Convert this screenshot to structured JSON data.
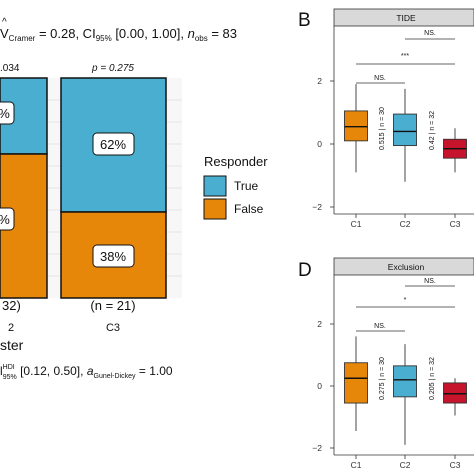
{
  "colors": {
    "true": "#4AAED0",
    "false": "#E6870A",
    "c3": "#C5142B",
    "strip": "#D9D9D9"
  },
  "left": {
    "header_pre": "V",
    "header_sub1": "Cramer",
    "header_mid": " = 0.28, CI",
    "header_sub2": "95%",
    "header_mid2": " [0.00, 1.00], ",
    "header_n": "n",
    "header_sub3": "obs",
    "header_end": " = 83",
    "pval_left": ".034",
    "pval_right": "p = 0.275",
    "pct_left_top": "%",
    "pct_left_bottom": "%",
    "pct_c3_true": "62%",
    "pct_c3_false": "38%",
    "n_left": "32)",
    "n_c3": "(n = 21)",
    "xtick_left": "2",
    "xtick_c3": "C3",
    "xlabel": "ster",
    "footer_pre": "l",
    "footer_sup": "HDI",
    "footer_sub": "95%",
    "footer_mid": " [0.12, 0.50], ",
    "footer_a": "a",
    "footer_asub": "Gunel-Dickey",
    "footer_end": " = 1.00",
    "legend_title": "Responder",
    "legend_true": "True",
    "legend_false": "False"
  },
  "panel_b": {
    "letter": "B",
    "strip": "TIDE",
    "ns1": "NS.",
    "ns2": "NS.",
    "sig": "***",
    "lab_c2": "0.515 | n = 30",
    "lab_c3": "0.42 | n = 32",
    "yticks": [
      "2",
      "0",
      "−2"
    ],
    "xticks": [
      "C1",
      "C2",
      "C3"
    ]
  },
  "panel_d": {
    "letter": "D",
    "strip": "Exclusion",
    "ns1": "NS.",
    "ns2": "NS.",
    "sig": "*",
    "lab_c2": "0.275 | n = 30",
    "lab_c3": "0.205 | n = 32",
    "yticks": [
      "2",
      "0",
      "−2"
    ],
    "xticks": [
      "C1",
      "C2",
      "C3"
    ]
  },
  "chart_data": [
    {
      "type": "bar",
      "stacked": true,
      "categories": [
        "C2",
        "C3"
      ],
      "series": [
        {
          "name": "True",
          "values": [
            null,
            62
          ]
        },
        {
          "name": "False",
          "values": [
            null,
            38
          ]
        }
      ],
      "n": [
        32,
        21
      ],
      "p_values": [
        0.034,
        0.275
      ],
      "legend": "right"
    },
    {
      "type": "box",
      "title": "TIDE",
      "categories": [
        "C1",
        "C2",
        "C3"
      ],
      "boxes": [
        {
          "min": -0.9,
          "q1": 0.1,
          "median": 0.55,
          "q3": 1.05,
          "max": 1.9
        },
        {
          "min": -1.2,
          "q1": -0.05,
          "median": 0.4,
          "q3": 0.95,
          "max": 1.75
        },
        {
          "min": -0.9,
          "q1": -0.45,
          "median": -0.15,
          "q3": 0.15,
          "max": 0.5
        }
      ],
      "ylim": [
        -2.1,
        2.6
      ]
    },
    {
      "type": "box",
      "title": "Exclusion",
      "categories": [
        "C1",
        "C2",
        "C3"
      ],
      "boxes": [
        {
          "min": -1.45,
          "q1": -0.55,
          "median": 0.25,
          "q3": 0.75,
          "max": 1.6
        },
        {
          "min": -1.9,
          "q1": -0.35,
          "median": 0.2,
          "q3": 0.65,
          "max": 1.35
        },
        {
          "min": -0.95,
          "q1": -0.55,
          "median": -0.25,
          "q3": 0.1,
          "max": 0.25
        }
      ],
      "ylim": [
        -2.3,
        2.6
      ]
    }
  ]
}
